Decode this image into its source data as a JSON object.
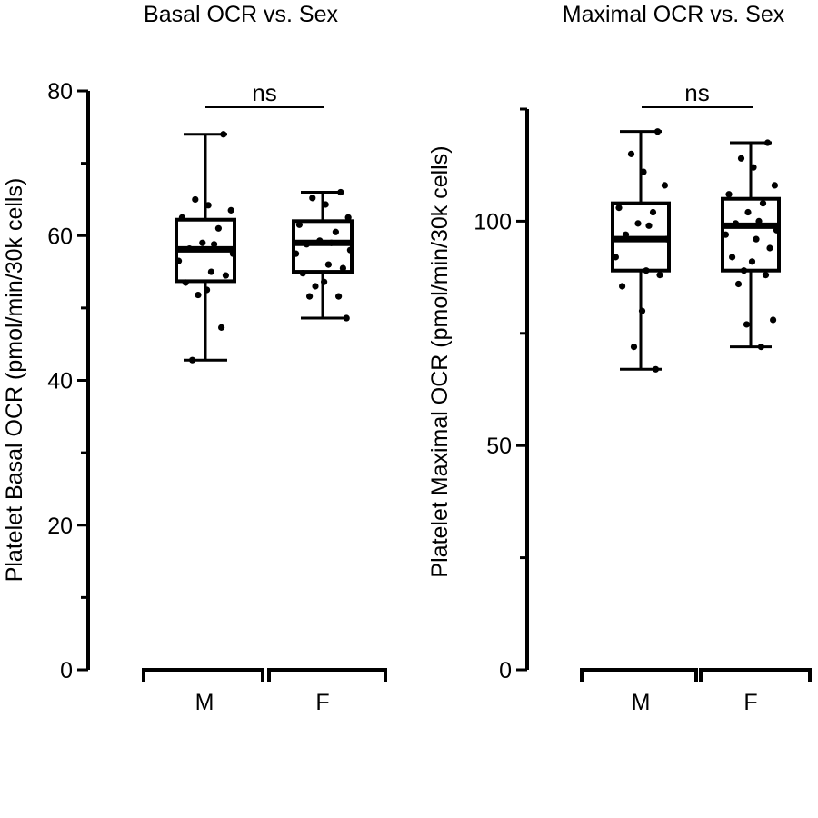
{
  "chart_data": [
    {
      "type": "box",
      "title": "Basal OCR vs. Sex",
      "xlabel": "",
      "ylabel": "Platelet Basal OCR (pmol/min/30k cells)",
      "ylim": [
        0,
        80
      ],
      "yticks": [
        0,
        20,
        40,
        60,
        80
      ],
      "categories": [
        "M",
        "F"
      ],
      "significance": "ns",
      "groups": [
        {
          "name": "M",
          "min": 42.8,
          "q1": 53.7,
          "median": 58.1,
          "q3": 62.2,
          "max": 74.0,
          "points": [
            74.0,
            65.0,
            64.2,
            63.5,
            62.5,
            61.0,
            59.0,
            58.8,
            58.2,
            57.5,
            56.5,
            55.0,
            54.5,
            53.5,
            52.5,
            51.8,
            47.3,
            42.8
          ]
        },
        {
          "name": "F",
          "min": 48.6,
          "q1": 55.0,
          "median": 59.0,
          "q3": 62.0,
          "max": 66.0,
          "points": [
            66.0,
            65.2,
            64.3,
            62.5,
            61.5,
            60.5,
            59.3,
            59.0,
            58.8,
            58.0,
            57.5,
            56.0,
            55.5,
            54.8,
            53.6,
            53.0,
            51.6,
            51.6,
            48.6
          ]
        }
      ]
    },
    {
      "type": "box",
      "title": "Maximal OCR vs. Sex",
      "xlabel": "",
      "ylabel": "Platelet Maximal OCR (pmol/min/30k cells)",
      "ylim": [
        0,
        125
      ],
      "yticks": [
        0,
        50,
        100
      ],
      "categories": [
        "M",
        "F"
      ],
      "significance": "ns",
      "groups": [
        {
          "name": "M",
          "min": 67.0,
          "q1": 89.0,
          "median": 96.0,
          "q3": 104.0,
          "max": 120.0,
          "points": [
            120.0,
            115.0,
            111.0,
            108.0,
            103.0,
            102.0,
            99.5,
            99.0,
            97.0,
            96.0,
            92.0,
            89.0,
            88.0,
            85.5,
            80.0,
            72.0,
            67.0
          ]
        },
        {
          "name": "F",
          "min": 72.0,
          "q1": 89.0,
          "median": 99.0,
          "q3": 105.0,
          "max": 117.5,
          "points": [
            117.5,
            114.0,
            112.0,
            108.0,
            106.0,
            104.0,
            102.0,
            100.0,
            99.5,
            98.0,
            97.0,
            96.0,
            94.0,
            92.0,
            91.0,
            89.0,
            88.0,
            86.0,
            78.0,
            77.0,
            72.0
          ]
        }
      ]
    }
  ]
}
